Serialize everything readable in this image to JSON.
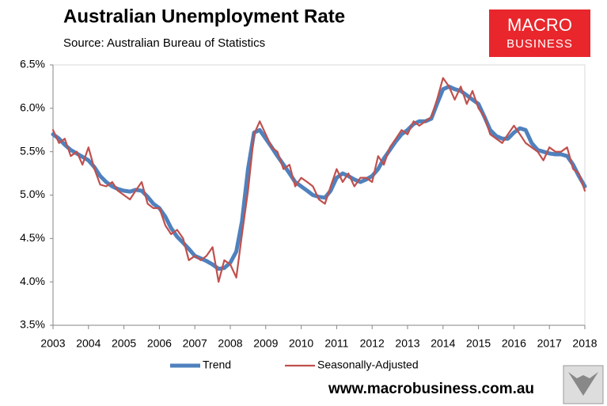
{
  "chart_data": {
    "type": "line",
    "title": "Australian Unemployment Rate",
    "subtitle": "Source: Australian Bureau of Statistics",
    "logo": {
      "line1": "MACRO",
      "line2": "BUSINESS"
    },
    "footer": "www.macrobusiness.com.au",
    "legend": "bottom",
    "xlim": [
      2003,
      2018
    ],
    "xticks": [
      2003,
      2004,
      2005,
      2006,
      2007,
      2008,
      2009,
      2010,
      2011,
      2012,
      2013,
      2014,
      2015,
      2016,
      2017,
      2018
    ],
    "ylim": [
      3.5,
      6.5
    ],
    "yticks": [
      {
        "value": 3.5,
        "label": "3.5%"
      },
      {
        "value": 4.0,
        "label": "4.0%"
      },
      {
        "value": 4.5,
        "label": "4.5%"
      },
      {
        "value": 5.0,
        "label": "5.0%"
      },
      {
        "value": 5.5,
        "label": "5.5%"
      },
      {
        "value": 6.0,
        "label": "6.0%"
      },
      {
        "value": 6.5,
        "label": "6.5%"
      }
    ],
    "x": [
      2003,
      2003.17,
      2003.33,
      2003.5,
      2003.67,
      2003.83,
      2004,
      2004.17,
      2004.33,
      2004.5,
      2004.67,
      2004.83,
      2005,
      2005.17,
      2005.33,
      2005.5,
      2005.67,
      2005.83,
      2006,
      2006.17,
      2006.33,
      2006.5,
      2006.67,
      2006.83,
      2007,
      2007.17,
      2007.33,
      2007.5,
      2007.67,
      2007.83,
      2008,
      2008.17,
      2008.33,
      2008.5,
      2008.67,
      2008.83,
      2009,
      2009.17,
      2009.33,
      2009.5,
      2009.67,
      2009.83,
      2010,
      2010.17,
      2010.33,
      2010.5,
      2010.67,
      2010.83,
      2011,
      2011.17,
      2011.33,
      2011.5,
      2011.67,
      2011.83,
      2012,
      2012.17,
      2012.33,
      2012.5,
      2012.67,
      2012.83,
      2013,
      2013.17,
      2013.33,
      2013.5,
      2013.67,
      2013.83,
      2014,
      2014.17,
      2014.33,
      2014.5,
      2014.67,
      2014.83,
      2015,
      2015.17,
      2015.33,
      2015.5,
      2015.67,
      2015.83,
      2016,
      2016.17,
      2016.33,
      2016.5,
      2016.67,
      2016.83,
      2017,
      2017.17,
      2017.33,
      2017.5,
      2017.67,
      2017.83,
      2018
    ],
    "series": [
      {
        "name": "Trend",
        "color": "#4f81bd",
        "width": 5,
        "values": [
          5.7,
          5.65,
          5.58,
          5.52,
          5.48,
          5.44,
          5.4,
          5.32,
          5.22,
          5.15,
          5.1,
          5.07,
          5.05,
          5.04,
          5.06,
          5.05,
          4.98,
          4.9,
          4.85,
          4.75,
          4.62,
          4.52,
          4.45,
          4.38,
          4.3,
          4.27,
          4.24,
          4.2,
          4.15,
          4.16,
          4.22,
          4.35,
          4.7,
          5.3,
          5.72,
          5.75,
          5.65,
          5.55,
          5.45,
          5.35,
          5.25,
          5.15,
          5.1,
          5.05,
          5.0,
          4.98,
          4.97,
          5.05,
          5.2,
          5.25,
          5.22,
          5.18,
          5.15,
          5.18,
          5.22,
          5.3,
          5.42,
          5.52,
          5.62,
          5.7,
          5.75,
          5.82,
          5.85,
          5.85,
          5.88,
          6.05,
          6.22,
          6.25,
          6.22,
          6.2,
          6.15,
          6.1,
          6.05,
          5.9,
          5.75,
          5.68,
          5.65,
          5.65,
          5.72,
          5.77,
          5.75,
          5.6,
          5.52,
          5.5,
          5.48,
          5.47,
          5.47,
          5.45,
          5.35,
          5.22,
          5.1
        ]
      },
      {
        "name": "Seasonally-Adjusted",
        "color": "#c0504d",
        "width": 2.2,
        "values": [
          5.75,
          5.6,
          5.65,
          5.45,
          5.5,
          5.35,
          5.55,
          5.3,
          5.12,
          5.1,
          5.15,
          5.05,
          5.0,
          4.95,
          5.05,
          5.15,
          4.9,
          4.85,
          4.85,
          4.65,
          4.55,
          4.6,
          4.5,
          4.25,
          4.3,
          4.25,
          4.3,
          4.4,
          4.0,
          4.25,
          4.2,
          4.05,
          4.55,
          5.05,
          5.7,
          5.85,
          5.7,
          5.55,
          5.5,
          5.3,
          5.35,
          5.1,
          5.2,
          5.15,
          5.1,
          4.95,
          4.9,
          5.1,
          5.3,
          5.15,
          5.25,
          5.1,
          5.2,
          5.2,
          5.15,
          5.45,
          5.35,
          5.55,
          5.65,
          5.75,
          5.7,
          5.85,
          5.8,
          5.85,
          5.9,
          6.1,
          6.35,
          6.25,
          6.1,
          6.25,
          6.05,
          6.2,
          6.0,
          5.9,
          5.7,
          5.65,
          5.6,
          5.7,
          5.8,
          5.7,
          5.6,
          5.55,
          5.5,
          5.4,
          5.55,
          5.5,
          5.5,
          5.55,
          5.3,
          5.25,
          5.05
        ]
      }
    ]
  }
}
